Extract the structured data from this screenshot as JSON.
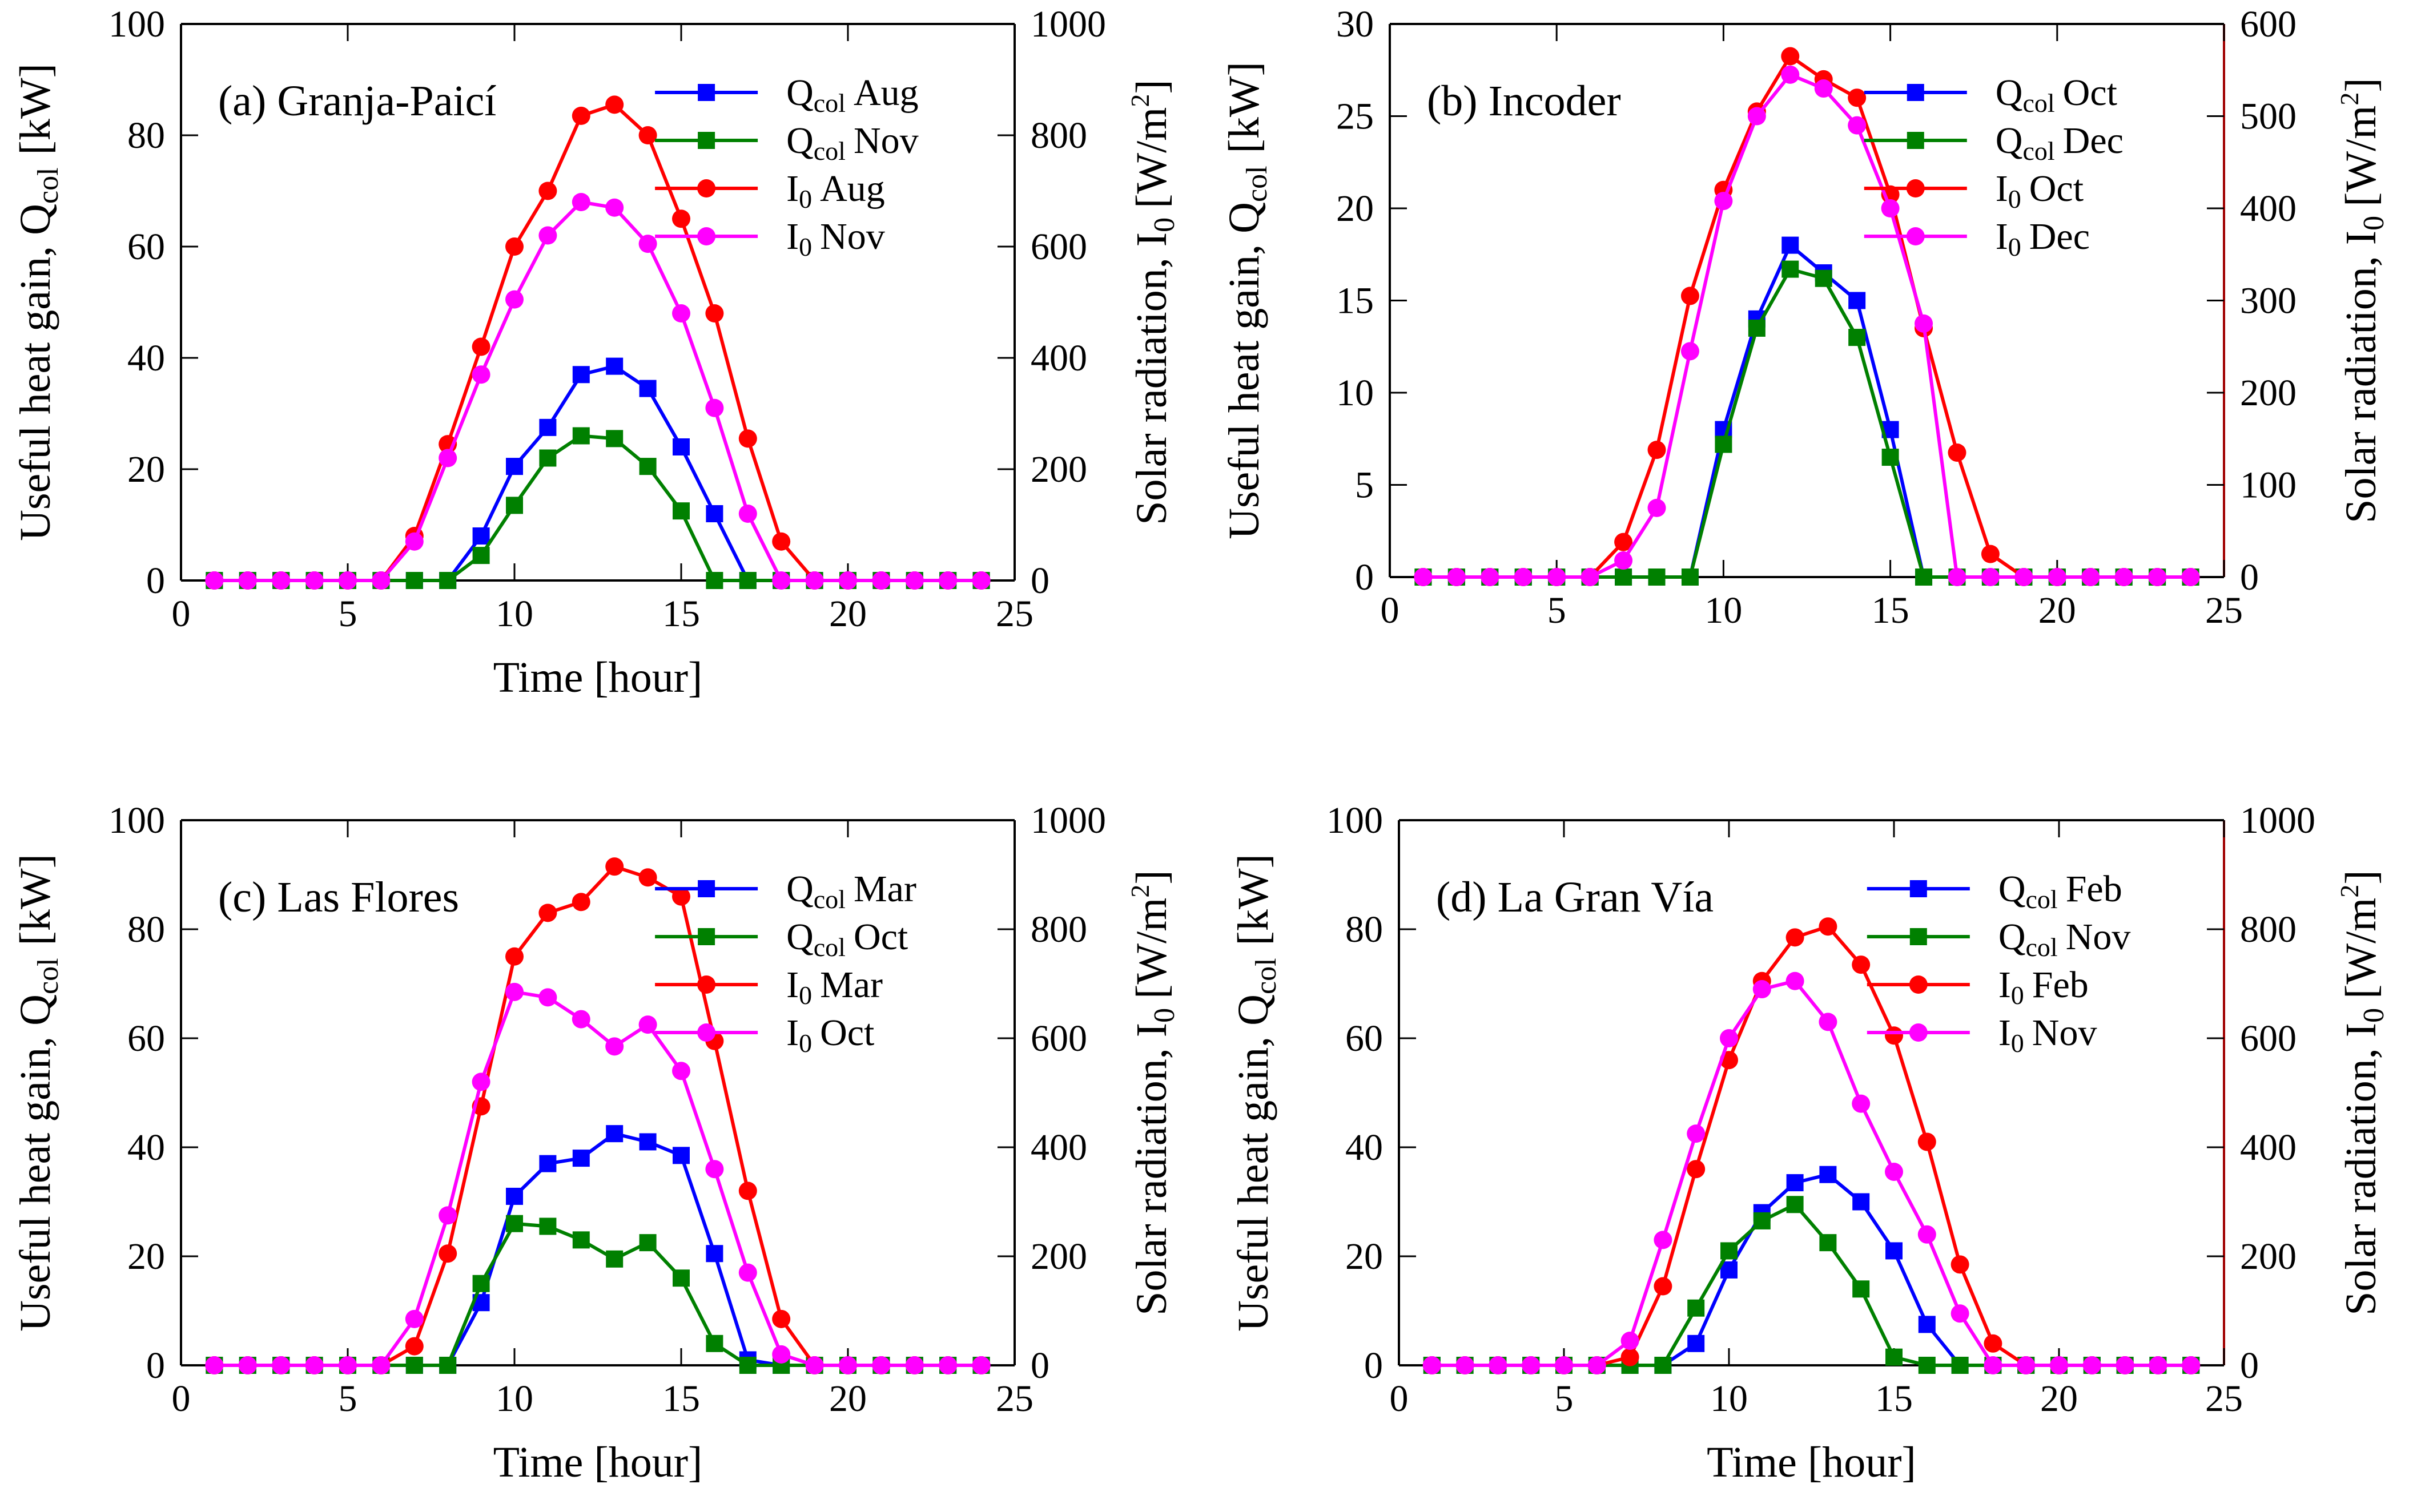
{
  "colors": {
    "q_first": "#0000ff",
    "q_second": "#008000",
    "i_first": "#ff0000",
    "i_second": "#ff00ff",
    "axis_right_accent": "#a00000"
  },
  "chart_data": [
    {
      "type": "line",
      "title": "(a) Granja-Paicí",
      "xlabel": "Time [hour]",
      "ylabel": "Useful heat gain, Q",
      "ylabel_sub": "col",
      "ylabel_unit": "[kW]",
      "y2label": "Solar radiation, I",
      "y2label_sub": "0",
      "y2label_unit": "[W/m",
      "y2label_sup": "2",
      "y2label_close": "]",
      "xlim": [
        0,
        25
      ],
      "xticks": [
        0,
        5,
        10,
        15,
        20,
        25
      ],
      "ylim": [
        0,
        100
      ],
      "yticks": [
        0,
        20,
        40,
        60,
        80,
        100
      ],
      "y2lim": [
        0,
        1000
      ],
      "y2ticks": [
        0,
        200,
        400,
        600,
        800,
        1000
      ],
      "x": [
        1,
        2,
        3,
        4,
        5,
        6,
        7,
        8,
        9,
        10,
        11,
        12,
        13,
        14,
        15,
        16,
        17,
        18,
        19,
        20,
        21,
        22,
        23,
        24
      ],
      "series": [
        {
          "name": "Aug",
          "var": "Q",
          "sub": "col",
          "axis": "left",
          "marker": "square",
          "color_key": "q_first",
          "values": [
            0,
            0,
            0,
            0,
            0,
            0,
            0,
            0,
            8,
            20.5,
            27.5,
            37,
            38.5,
            34.5,
            24,
            12,
            0,
            0,
            0,
            0,
            0,
            0,
            0,
            0
          ]
        },
        {
          "name": "Nov",
          "var": "Q",
          "sub": "col",
          "axis": "left",
          "marker": "square",
          "color_key": "q_second",
          "values": [
            0,
            0,
            0,
            0,
            0,
            0,
            0,
            0,
            4.5,
            13.5,
            22,
            26,
            25.5,
            20.5,
            12.5,
            0,
            0,
            0,
            0,
            0,
            0,
            0,
            0,
            0
          ]
        },
        {
          "name": "Aug",
          "var": "I",
          "sub": "0",
          "axis": "right",
          "marker": "circle",
          "color_key": "i_first",
          "values": [
            0,
            0,
            0,
            0,
            0,
            0,
            80,
            245,
            420,
            600,
            700,
            835,
            855,
            800,
            650,
            480,
            255,
            70,
            0,
            0,
            0,
            0,
            0,
            0
          ]
        },
        {
          "name": "Nov",
          "var": "I",
          "sub": "0",
          "axis": "right",
          "marker": "circle",
          "color_key": "i_second",
          "values": [
            0,
            0,
            0,
            0,
            0,
            0,
            70,
            220,
            370,
            505,
            620,
            680,
            670,
            605,
            480,
            310,
            120,
            0,
            0,
            0,
            0,
            0,
            0,
            0
          ]
        }
      ]
    },
    {
      "type": "line",
      "title": "(b) Incoder",
      "xlabel": "",
      "ylabel": "Useful heat gain, Q",
      "ylabel_sub": "col",
      "ylabel_unit": "[kW]",
      "y2label": "Solar radiation, I",
      "y2label_sub": "0",
      "y2label_unit": "[W/m",
      "y2label_sup": "2",
      "y2label_close": "]",
      "xlim": [
        0,
        25
      ],
      "xticks": [
        0,
        5,
        10,
        15,
        20,
        25
      ],
      "ylim": [
        0,
        30
      ],
      "yticks": [
        0,
        5,
        10,
        15,
        20,
        25,
        30
      ],
      "y2lim": [
        0,
        600
      ],
      "y2ticks": [
        0,
        100,
        200,
        300,
        400,
        500,
        600
      ],
      "x": [
        1,
        2,
        3,
        4,
        5,
        6,
        7,
        8,
        9,
        10,
        11,
        12,
        13,
        14,
        15,
        16,
        17,
        18,
        19,
        20,
        21,
        22,
        23,
        24
      ],
      "series": [
        {
          "name": "Oct",
          "var": "Q",
          "sub": "col",
          "axis": "left",
          "marker": "square",
          "color_key": "q_first",
          "values": [
            0,
            0,
            0,
            0,
            0,
            0,
            0,
            0,
            0,
            8,
            14,
            18,
            16.5,
            15,
            8,
            0,
            0,
            0,
            0,
            0,
            0,
            0,
            0,
            0
          ]
        },
        {
          "name": "Dec",
          "var": "Q",
          "sub": "col",
          "axis": "left",
          "marker": "square",
          "color_key": "q_second",
          "values": [
            0,
            0,
            0,
            0,
            0,
            0,
            0,
            0,
            0,
            7.2,
            13.5,
            16.7,
            16.2,
            13,
            6.5,
            0,
            0,
            0,
            0,
            0,
            0,
            0,
            0,
            0
          ]
        },
        {
          "name": "Oct",
          "var": "I",
          "sub": "0",
          "axis": "right",
          "marker": "circle",
          "color_key": "i_first",
          "values": [
            0,
            0,
            0,
            0,
            0,
            0,
            38,
            138,
            305,
            420,
            505,
            565,
            540,
            520,
            415,
            270,
            135,
            25,
            0,
            0,
            0,
            0,
            0,
            0
          ]
        },
        {
          "name": "Dec",
          "var": "I",
          "sub": "0",
          "axis": "right",
          "marker": "circle",
          "color_key": "i_second",
          "values": [
            0,
            0,
            0,
            0,
            0,
            0,
            18,
            75,
            245,
            408,
            500,
            545,
            530,
            490,
            400,
            275,
            0,
            0,
            0,
            0,
            0,
            0,
            0,
            0
          ]
        }
      ]
    },
    {
      "type": "line",
      "title": "(c) Las Flores",
      "xlabel": "Time [hour]",
      "ylabel": "Useful heat gain, Q",
      "ylabel_sub": "col",
      "ylabel_unit": "[kW]",
      "y2label": "Solar radiation, I",
      "y2label_sub": "0",
      "y2label_unit": "[W/m",
      "y2label_sup": "2",
      "y2label_close": "]",
      "xlim": [
        0,
        25
      ],
      "xticks": [
        0,
        5,
        10,
        15,
        20,
        25
      ],
      "ylim": [
        0,
        100
      ],
      "yticks": [
        0,
        20,
        40,
        60,
        80,
        100
      ],
      "y2lim": [
        0,
        1000
      ],
      "y2ticks": [
        0,
        200,
        400,
        600,
        800,
        1000
      ],
      "x": [
        1,
        2,
        3,
        4,
        5,
        6,
        7,
        8,
        9,
        10,
        11,
        12,
        13,
        14,
        15,
        16,
        17,
        18,
        19,
        20,
        21,
        22,
        23,
        24
      ],
      "series": [
        {
          "name": "Mar",
          "var": "Q",
          "sub": "col",
          "axis": "left",
          "marker": "square",
          "color_key": "q_first",
          "values": [
            0,
            0,
            0,
            0,
            0,
            0,
            0,
            0,
            11.5,
            31,
            37,
            38,
            42.5,
            41,
            38.5,
            20.5,
            1,
            0,
            0,
            0,
            0,
            0,
            0,
            0
          ]
        },
        {
          "name": "Oct",
          "var": "Q",
          "sub": "col",
          "axis": "left",
          "marker": "square",
          "color_key": "q_second",
          "values": [
            0,
            0,
            0,
            0,
            0,
            0,
            0,
            0,
            15,
            26,
            25.5,
            23,
            19.5,
            22.5,
            16,
            4,
            0,
            0,
            0,
            0,
            0,
            0,
            0,
            0
          ]
        },
        {
          "name": "Mar",
          "var": "I",
          "sub": "0",
          "axis": "right",
          "marker": "circle",
          "color_key": "i_first",
          "values": [
            0,
            0,
            0,
            0,
            0,
            0,
            35,
            205,
            475,
            750,
            830,
            850,
            915,
            895,
            860,
            595,
            320,
            85,
            0,
            0,
            0,
            0,
            0,
            0
          ]
        },
        {
          "name": "Oct",
          "var": "I",
          "sub": "0",
          "axis": "right",
          "marker": "circle",
          "color_key": "i_second",
          "values": [
            0,
            0,
            0,
            0,
            0,
            0,
            85,
            275,
            520,
            685,
            675,
            635,
            585,
            625,
            540,
            360,
            170,
            20,
            0,
            0,
            0,
            0,
            0,
            0
          ]
        }
      ]
    },
    {
      "type": "line",
      "title": "(d) La Gran Vía",
      "xlabel": "Time [hour]",
      "ylabel": "Useful heat gain, Q",
      "ylabel_sub": "col",
      "ylabel_unit": "[kW]",
      "y2label": "Solar radiation, I",
      "y2label_sub": "0",
      "y2label_unit": "[W/m",
      "y2label_sup": "2",
      "y2label_close": "]",
      "xlim": [
        0,
        25
      ],
      "xticks": [
        0,
        5,
        10,
        15,
        20,
        25
      ],
      "ylim": [
        0,
        100
      ],
      "yticks": [
        0,
        20,
        40,
        60,
        80,
        100
      ],
      "y2lim": [
        0,
        1000
      ],
      "y2ticks": [
        0,
        200,
        400,
        600,
        800,
        1000
      ],
      "x": [
        1,
        2,
        3,
        4,
        5,
        6,
        7,
        8,
        9,
        10,
        11,
        12,
        13,
        14,
        15,
        16,
        17,
        18,
        19,
        20,
        21,
        22,
        23,
        24
      ],
      "series": [
        {
          "name": "Feb",
          "var": "Q",
          "sub": "col",
          "axis": "left",
          "marker": "square",
          "color_key": "q_first",
          "values": [
            0,
            0,
            0,
            0,
            0,
            0,
            0,
            0,
            4,
            17.5,
            28,
            33.5,
            35,
            30,
            21,
            7.5,
            0,
            0,
            0,
            0,
            0,
            0,
            0,
            0
          ]
        },
        {
          "name": "Nov",
          "var": "Q",
          "sub": "col",
          "axis": "left",
          "marker": "square",
          "color_key": "q_second",
          "values": [
            0,
            0,
            0,
            0,
            0,
            0,
            0,
            0,
            10.5,
            21,
            26.5,
            29.5,
            22.5,
            14,
            1.5,
            0,
            0,
            0,
            0,
            0,
            0,
            0,
            0,
            0
          ]
        },
        {
          "name": "Feb",
          "var": "I",
          "sub": "0",
          "axis": "right",
          "marker": "circle",
          "color_key": "i_first",
          "values": [
            0,
            0,
            0,
            0,
            0,
            0,
            15,
            145,
            360,
            560,
            705,
            785,
            805,
            735,
            605,
            410,
            185,
            40,
            0,
            0,
            0,
            0,
            0,
            0
          ]
        },
        {
          "name": "Nov",
          "var": "I",
          "sub": "0",
          "axis": "right",
          "marker": "circle",
          "color_key": "i_second",
          "values": [
            0,
            0,
            0,
            0,
            0,
            0,
            45,
            230,
            425,
            600,
            690,
            705,
            630,
            480,
            355,
            240,
            95,
            0,
            0,
            0,
            0,
            0,
            0,
            0
          ]
        }
      ]
    }
  ]
}
